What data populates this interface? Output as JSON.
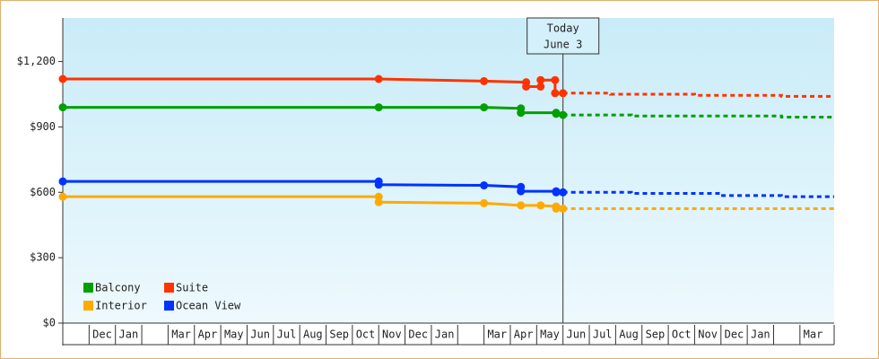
{
  "chart_data": {
    "type": "line",
    "xlim": [
      0,
      29.3
    ],
    "ylim": [
      0,
      1400
    ],
    "yticks": [
      {
        "value": 0,
        "label": "$0"
      },
      {
        "value": 300,
        "label": "$300"
      },
      {
        "value": 600,
        "label": "$600"
      },
      {
        "value": 900,
        "label": "$900"
      },
      {
        "value": 1200,
        "label": "$1,200"
      }
    ],
    "categories": [
      null,
      "Dec",
      "Jan",
      null,
      "Mar",
      "Apr",
      "May",
      "Jun",
      "Jul",
      "Aug",
      "Sep",
      "Oct",
      "Nov",
      "Dec",
      "Jan",
      null,
      "Mar",
      "Apr",
      "May",
      "Jun",
      "Jul",
      "Aug",
      "Sep",
      "Oct",
      "Nov",
      "Dec",
      "Jan",
      null,
      "Mar"
    ],
    "annotation": {
      "x": 19,
      "lines": [
        "Today",
        "June 3"
      ]
    },
    "series": [
      {
        "name": "Balcony",
        "color": "#00a000",
        "x": [
          0,
          12,
          16,
          17.4,
          17.4,
          18.74,
          18.74,
          19
        ],
        "values": [
          990,
          990,
          990,
          985,
          965,
          965,
          960,
          955
        ],
        "forecast_x": [
          19,
          21.6,
          21.6,
          27.3,
          27.3,
          29.3
        ],
        "forecast_values": [
          955,
          955,
          950,
          950,
          945,
          945
        ]
      },
      {
        "name": "Suite",
        "color": "#ff3300",
        "x": [
          0,
          12,
          16,
          17.6,
          17.6,
          18.15,
          18.15,
          18.7,
          18.7,
          19
        ],
        "values": [
          1120,
          1120,
          1110,
          1105,
          1085,
          1085,
          1115,
          1115,
          1055,
          1055
        ],
        "forecast_x": [
          19,
          20.8,
          20.8,
          24,
          24,
          27.3,
          27.3,
          29.3
        ],
        "forecast_values": [
          1055,
          1055,
          1050,
          1050,
          1045,
          1045,
          1040,
          1040
        ]
      },
      {
        "name": "Interior",
        "color": "#ffaa00",
        "x": [
          0,
          12,
          12,
          16,
          17.4,
          18.15,
          18.74,
          18.74,
          19
        ],
        "values": [
          580,
          580,
          555,
          550,
          540,
          540,
          535,
          525,
          525
        ],
        "forecast_x": [
          19,
          29.3
        ],
        "forecast_values": [
          525,
          525
        ]
      },
      {
        "name": "Ocean View",
        "color": "#0033ff",
        "x": [
          0,
          12,
          12,
          16,
          17.4,
          17.4,
          18.74,
          18.74,
          19
        ],
        "values": [
          650,
          650,
          635,
          632,
          625,
          605,
          605,
          600,
          600
        ],
        "forecast_x": [
          19,
          21.6,
          21.6,
          25,
          25,
          27.3,
          27.3,
          29.3
        ],
        "forecast_values": [
          600,
          600,
          595,
          595,
          585,
          585,
          580,
          580
        ]
      }
    ]
  }
}
